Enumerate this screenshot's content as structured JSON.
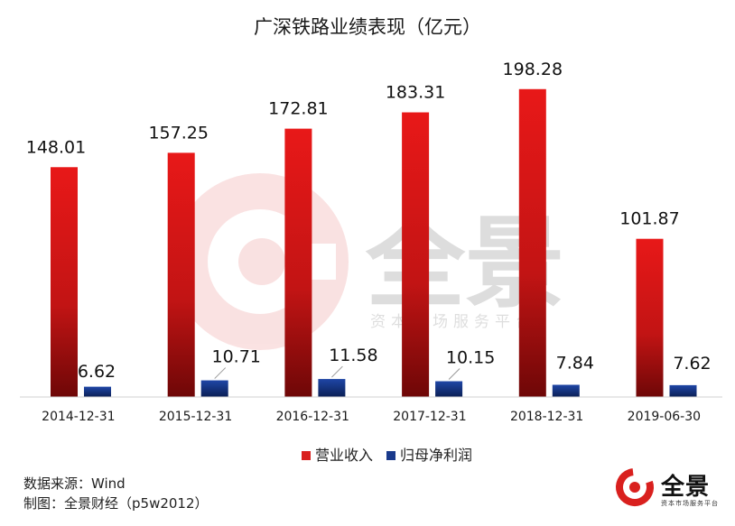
{
  "chart_data": {
    "type": "bar",
    "title": "广深铁路业绩表现（亿元）",
    "categories": [
      "2014-12-31",
      "2015-12-31",
      "2016-12-31",
      "2017-12-31",
      "2018-12-31",
      "2019-06-30"
    ],
    "series": [
      {
        "name": "营业收入",
        "values": [
          148.01,
          157.25,
          172.81,
          183.31,
          198.28,
          101.87
        ],
        "color": "#d9201e"
      },
      {
        "name": "归母净利润",
        "values": [
          6.62,
          10.71,
          11.58,
          10.15,
          7.84,
          7.62
        ],
        "color": "#1a3a8c"
      }
    ],
    "value_labels": [
      [
        "148.01",
        "157.25",
        "172.81",
        "183.31",
        "198.28",
        "101.87"
      ],
      [
        "6.62",
        "10.71",
        "11.58",
        "10.15",
        "7.84",
        "7.62"
      ]
    ],
    "ylim": [
      0,
      215
    ],
    "grid": false,
    "legend_position": "bottom"
  },
  "footer": {
    "source": "数据来源：Wind",
    "author": "制图：全景财经（p5w2012）"
  },
  "watermark": {
    "name": "全景",
    "tagline": "资本市场服务平台"
  },
  "logo": {
    "name": "全景",
    "tagline": "资本市场服务平台",
    "brand_color": "#d9201e"
  }
}
